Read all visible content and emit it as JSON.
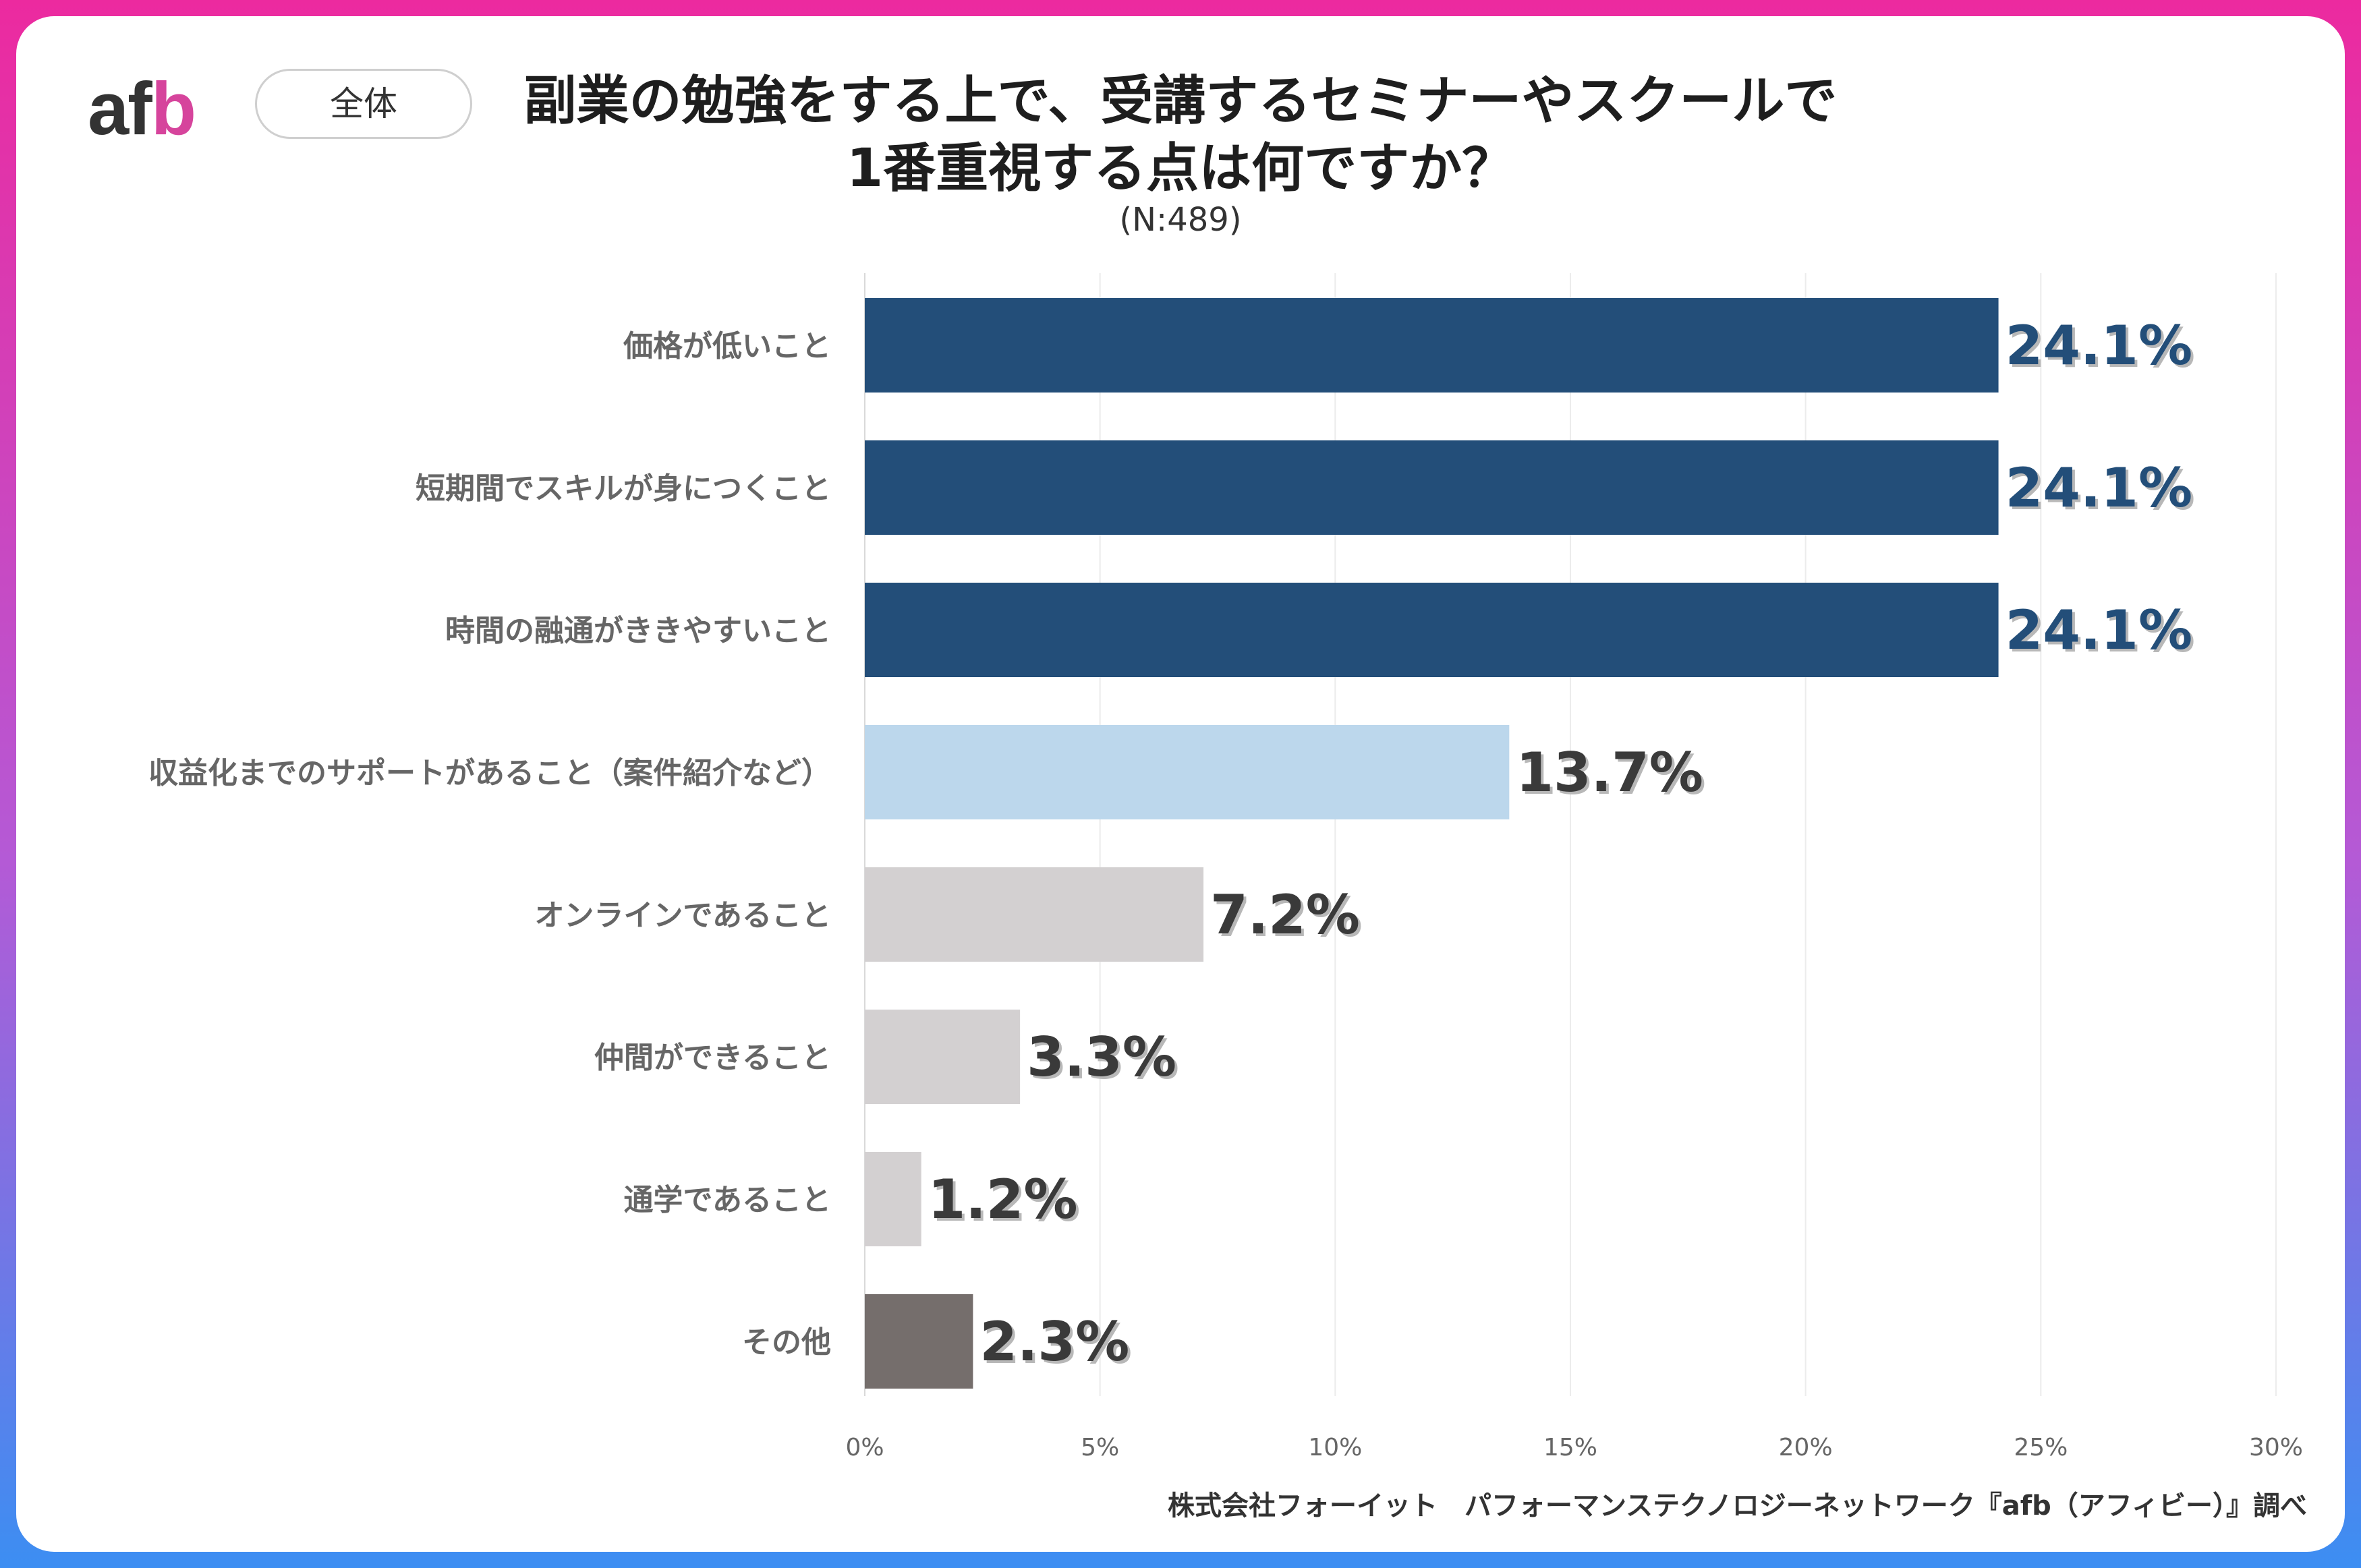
{
  "header": {
    "logo_text_1": "af",
    "logo_text_2": "b",
    "segment_pill": "全体",
    "title_line1": "副業の勉強をする上で、受講するセミナーやスクールで",
    "title_line2": "1番重視する点は何ですか？",
    "sample_size": "(N:489)"
  },
  "footer": {
    "source": "株式会社フォーイット　パフォーマンステクノロジーネットワーク『afb（アフィビー）』調べ"
  },
  "colors": {
    "top": "#234e79",
    "highlight": "#bcd7ec",
    "light_gray": "#d3d0d1",
    "dark_gray": "#756e6c"
  },
  "chart_data": {
    "type": "bar",
    "orientation": "horizontal",
    "title": "副業の勉強をする上で、受講するセミナーやスクールで1番重視する点は何ですか？",
    "xlabel": "",
    "ylabel": "",
    "xlim": [
      0,
      30
    ],
    "ticks": [
      "0%",
      "5%",
      "10%",
      "15%",
      "20%",
      "25%",
      "30%"
    ],
    "grid": true,
    "categories": [
      "価格が低いこと",
      "短期間でスキルが身につくこと",
      "時間の融通がききやすいこと",
      "収益化までのサポートがあること（案件紹介など）",
      "オンラインであること",
      "仲間ができること",
      "通学であること",
      "その他"
    ],
    "values": [
      24.1,
      24.1,
      24.1,
      13.7,
      7.2,
      3.3,
      1.2,
      2.3
    ],
    "labels": [
      "24.1%",
      "24.1%",
      "24.1%",
      "13.7%",
      "7.2%",
      "3.3%",
      "1.2%",
      "2.3%"
    ],
    "bar_color_keys": [
      "top",
      "top",
      "top",
      "highlight",
      "light_gray",
      "light_gray",
      "light_gray",
      "dark_gray"
    ]
  }
}
